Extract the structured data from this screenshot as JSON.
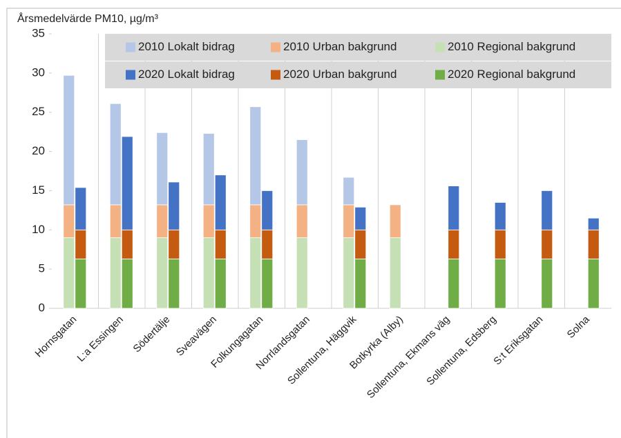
{
  "chart_data": {
    "type": "stacked_bar",
    "ylabel": "Årsmedelvärde PM10, µg/m³",
    "categories": [
      "Hornsgatan",
      "L:a Essingen",
      "Södertälje",
      "Sveavägen",
      "Folkungagatan",
      "Norrlandsgatan",
      "Sollentuna, Häggvik",
      "Botkyrka (Alby)",
      "Sollentuna, Ekmans väg",
      "Sollentuna, Edsberg",
      "S:t Eriksgatan",
      "Solna"
    ],
    "series": [
      {
        "name": "2010 Lokalt bidrag",
        "stack": "2010",
        "color": "#b4c7e7",
        "values": [
          16.5,
          12.9,
          9.2,
          9.1,
          12.5,
          8.3,
          3.5,
          null,
          null,
          null,
          null,
          null
        ]
      },
      {
        "name": "2010 Urban bakgrund",
        "stack": "2010",
        "color": "#f4b183",
        "values": [
          4.2,
          4.2,
          4.2,
          4.2,
          4.2,
          4.2,
          4.2,
          4.2,
          null,
          null,
          null,
          null
        ]
      },
      {
        "name": "2010 Regional bakgrund",
        "stack": "2010",
        "color": "#c5e0b4",
        "values": [
          9,
          9,
          9,
          9,
          9,
          9,
          9,
          9,
          null,
          null,
          null,
          null
        ]
      },
      {
        "name": "2020 Lokalt bidrag",
        "stack": "2020",
        "color": "#4472c4",
        "values": [
          5.4,
          11.9,
          6.1,
          7.0,
          5.0,
          null,
          2.9,
          null,
          5.6,
          3.5,
          5.0,
          1.5
        ]
      },
      {
        "name": "2020 Urban bakgrund",
        "stack": "2020",
        "color": "#c55a11",
        "values": [
          3.7,
          3.7,
          3.7,
          3.7,
          3.7,
          null,
          3.7,
          null,
          3.7,
          3.7,
          3.7,
          3.7
        ]
      },
      {
        "name": "2020 Regional bakgrund",
        "stack": "2020",
        "color": "#70ad47",
        "values": [
          6.3,
          6.3,
          6.3,
          6.3,
          6.3,
          null,
          6.3,
          null,
          6.3,
          6.3,
          6.3,
          6.3
        ]
      }
    ],
    "ylim": [
      0,
      35
    ],
    "yticks": [
      0,
      5,
      10,
      15,
      20,
      25,
      30,
      35
    ],
    "legend": "top-right"
  }
}
